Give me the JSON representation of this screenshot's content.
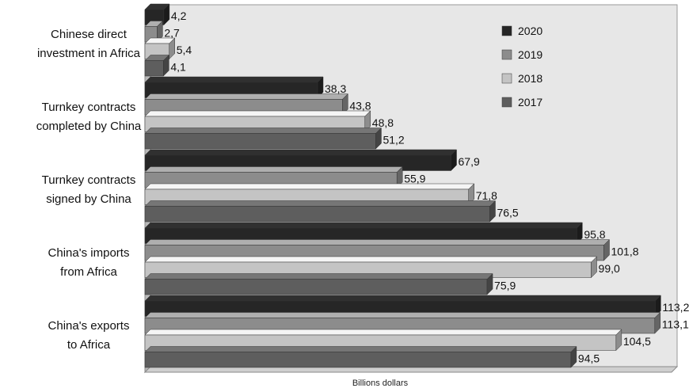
{
  "chart_data": {
    "type": "bar",
    "orientation": "horizontal",
    "categories": [
      [
        "Chinese direct",
        "investment in Africa"
      ],
      [
        "Turnkey contracts",
        "completed by China"
      ],
      [
        "Turnkey contracts",
        "signed by China"
      ],
      [
        "China's imports",
        "from Africa"
      ],
      [
        "China's exports",
        "to Africa"
      ]
    ],
    "series": [
      {
        "name": "2020",
        "color": "#262626",
        "values": [
          4.2,
          38.3,
          67.9,
          95.8,
          113.2
        ],
        "labels": [
          "4,2",
          "38,3",
          "67,9",
          "95,8",
          "113,2"
        ]
      },
      {
        "name": "2019",
        "color": "#8c8c8c",
        "values": [
          2.7,
          43.8,
          55.9,
          101.8,
          113.1
        ],
        "labels": [
          "2,7",
          "43,8",
          "55,9",
          "101,8",
          "113,1"
        ]
      },
      {
        "name": "2018",
        "color": "#c4c4c4",
        "values": [
          5.4,
          48.8,
          71.8,
          99.0,
          104.5
        ],
        "labels": [
          "5,4",
          "48,8",
          "71,8",
          "99,0",
          "104,5"
        ]
      },
      {
        "name": "2017",
        "color": "#5e5e5e",
        "values": [
          4.1,
          51.2,
          76.5,
          75.9,
          94.5
        ],
        "labels": [
          "4,1",
          "51,2",
          "76,5",
          "75,9",
          "94,5"
        ]
      }
    ],
    "xlabel": "Billions dollars",
    "ylabel": "",
    "xlim": [
      0,
      117
    ],
    "grid": false,
    "legend_position": "top-right",
    "style": "3d"
  }
}
